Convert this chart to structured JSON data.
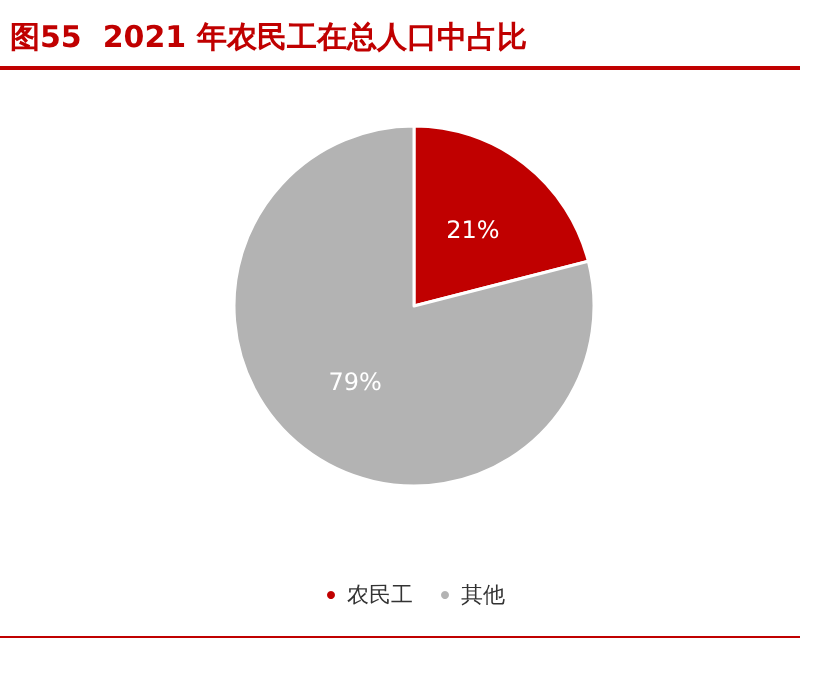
{
  "chart_data": {
    "type": "pie",
    "title": "图55  2021 年农民工在总人口中占比",
    "categories": [
      "农民工",
      "其他"
    ],
    "values": [
      21,
      79
    ],
    "colors": [
      "#c00000",
      "#b3b3b3"
    ],
    "value_labels": [
      "21%",
      "79%"
    ],
    "legend": "bottom"
  }
}
